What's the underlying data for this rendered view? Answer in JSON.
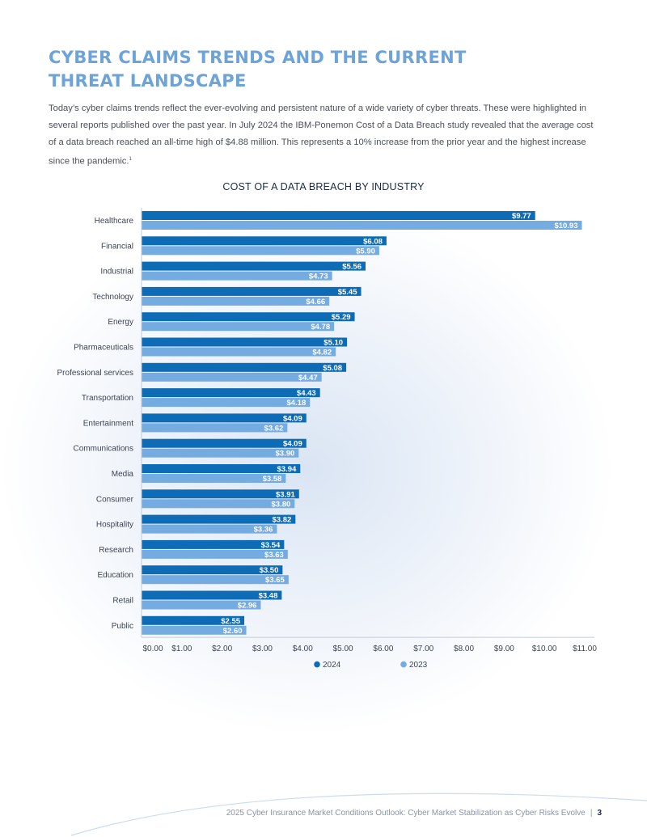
{
  "heading": {
    "line1": "CYBER CLAIMS TRENDS AND THE CURRENT",
    "line2": "THREAT LANDSCAPE"
  },
  "intro": {
    "text": "Today’s cyber claims trends reflect the ever-evolving and persistent nature of a wide variety of cyber threats. These were highlighted in several reports published over the past year. In July 2024 the IBM-Ponemon Cost of a Data Breach study revealed that the average cost of a data breach reached an all-time high of $4.88 million. This represents a 10% increase from the prior year and the highest increase since the pandemic.",
    "footnote": "1"
  },
  "colors": {
    "series_2024": "#0e6bb5",
    "series_2023": "#74abe0",
    "heading": "#6ea3d8"
  },
  "chart_data": {
    "type": "bar",
    "orientation": "horizontal",
    "title": "COST OF A DATA BREACH BY INDUSTRY",
    "categories": [
      "Healthcare",
      "Financial",
      "Industrial",
      "Technology",
      "Energy",
      "Pharmaceuticals",
      "Professional services",
      "Transportation",
      "Entertainment",
      "Communications",
      "Media",
      "Consumer",
      "Hospitality",
      "Research",
      "Education",
      "Retail",
      "Public"
    ],
    "series": [
      {
        "name": "2024",
        "values": [
          9.77,
          6.08,
          5.56,
          5.45,
          5.29,
          5.1,
          5.08,
          4.43,
          4.09,
          4.09,
          3.94,
          3.91,
          3.82,
          3.54,
          3.5,
          3.48,
          2.55
        ],
        "labels": [
          "$9.77",
          "$6.08",
          "$5.56",
          "$5.45",
          "$5.29",
          "$5.10",
          "$5.08",
          "$4.43",
          "$4.09",
          "$4.09",
          "$3.94",
          "$3.91",
          "$3.82",
          "$3.54",
          "$3.50",
          "$3.48",
          "$2.55"
        ]
      },
      {
        "name": "2023",
        "values": [
          10.93,
          5.9,
          4.73,
          4.66,
          4.78,
          4.82,
          4.47,
          4.18,
          3.62,
          3.9,
          3.58,
          3.8,
          3.36,
          3.63,
          3.65,
          2.96,
          2.6
        ],
        "labels": [
          "$10.93",
          "$5.90",
          "$4.73",
          "$4.66",
          "$4.78",
          "$4.82",
          "$4.47",
          "$4.18",
          "$3.62",
          "$3.90",
          "$3.58",
          "$3.80",
          "$3.36",
          "$3.63",
          "$3.65",
          "$2.96",
          "$2.60"
        ]
      }
    ],
    "xlim": [
      0,
      11
    ],
    "xticks": [
      0,
      1,
      2,
      3,
      4,
      5,
      6,
      7,
      8,
      9,
      10,
      11
    ],
    "xtick_labels": [
      "$0.00",
      "$1.00",
      "$2.00",
      "$3.00",
      "$4.00",
      "$5.00",
      "$6.00",
      "$7.00",
      "$8.00",
      "$9.00",
      "$10.00",
      "$11.00"
    ],
    "grid": false,
    "legend": "bottom-center"
  },
  "footer": {
    "text": "2025 Cyber Insurance Market Conditions Outlook: Cyber Market Stabilization as Cyber Risks Evolve",
    "separator": "|",
    "page": "3"
  }
}
